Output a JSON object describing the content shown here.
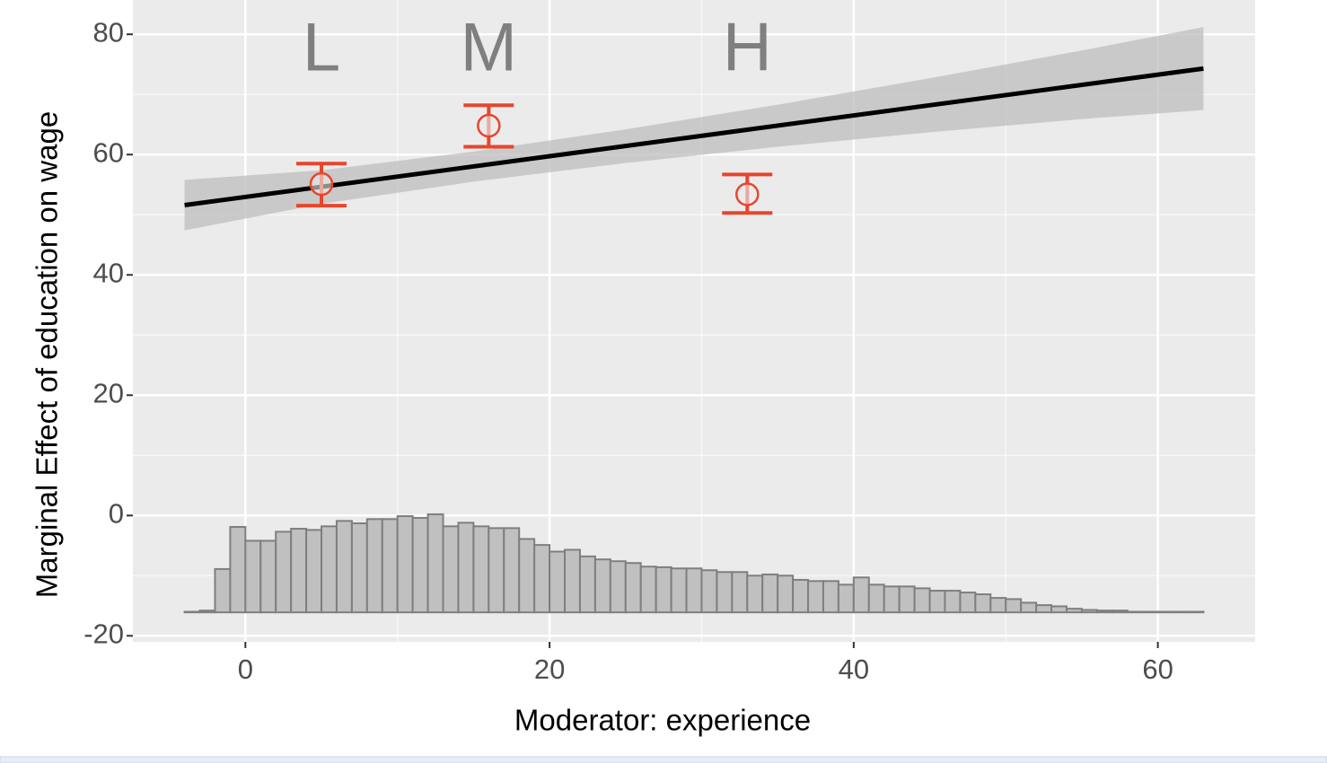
{
  "chart_data": {
    "type": "interflex",
    "x_label": "Moderator: experience",
    "y_label": "Marginal Effect of education on wage",
    "xlim": [
      -7.4,
      66.4
    ],
    "ylim": [
      -21,
      85.7
    ],
    "xticks": [
      0,
      20,
      40,
      60
    ],
    "yticks": [
      -20,
      0,
      20,
      40,
      60,
      80
    ],
    "grid": true,
    "line": {
      "x": [
        -4,
        63
      ],
      "values": [
        51.6,
        74.3
      ],
      "color": "#000000"
    },
    "band": {
      "x": [
        -4,
        5,
        15,
        25,
        35,
        45,
        55,
        63
      ],
      "lower": [
        47.4,
        51.8,
        55.5,
        58.6,
        61.3,
        63.7,
        65.9,
        67.4
      ],
      "upper": [
        55.8,
        57.4,
        60.5,
        64.2,
        68.3,
        72.7,
        77.3,
        81.2
      ],
      "color": "#bdbdbd"
    },
    "points": {
      "x": [
        5,
        16,
        33
      ],
      "values": [
        55.1,
        64.8,
        53.4
      ],
      "lower": [
        51.5,
        61.3,
        50.3
      ],
      "upper": [
        58.5,
        68.2,
        56.7
      ],
      "labels": [
        "L",
        "M",
        "H"
      ],
      "label_y": 77,
      "color": "#e8452c"
    },
    "histogram": {
      "base": -16.1,
      "color": "#c0c0c0",
      "bins": [
        -4,
        -3,
        -2,
        -1,
        0,
        1,
        2,
        3,
        4,
        5,
        6,
        7,
        8,
        9,
        10,
        11,
        12,
        13,
        14,
        15,
        16,
        17,
        18,
        19,
        20,
        21,
        22,
        23,
        24,
        25,
        26,
        27,
        28,
        29,
        30,
        31,
        32,
        33,
        34,
        35,
        36,
        37,
        38,
        39,
        40,
        41,
        42,
        43,
        44,
        45,
        46,
        47,
        48,
        49,
        50,
        51,
        52,
        53,
        54,
        55,
        56,
        57,
        58,
        59,
        60,
        61,
        62,
        63
      ],
      "values": [
        0.1,
        0.3,
        7.2,
        14.2,
        11.9,
        11.9,
        13.4,
        13.9,
        13.7,
        14.3,
        15.2,
        14.8,
        15.5,
        15.5,
        16.0,
        15.7,
        16.3,
        14.3,
        14.9,
        14.3,
        14.0,
        14.0,
        12.2,
        11.2,
        10.1,
        10.4,
        9.3,
        8.8,
        8.5,
        8.2,
        7.6,
        7.5,
        7.3,
        7.3,
        7.0,
        6.7,
        6.7,
        6.1,
        6.3,
        6.1,
        5.4,
        5.2,
        5.2,
        4.6,
        5.8,
        4.6,
        4.3,
        4.3,
        4.0,
        3.6,
        3.6,
        3.3,
        3.0,
        2.4,
        2.2,
        1.6,
        1.2,
        1.0,
        0.6,
        0.4,
        0.3,
        0.3,
        0.1,
        0.1,
        0.1,
        0.1,
        0.1
      ]
    }
  }
}
